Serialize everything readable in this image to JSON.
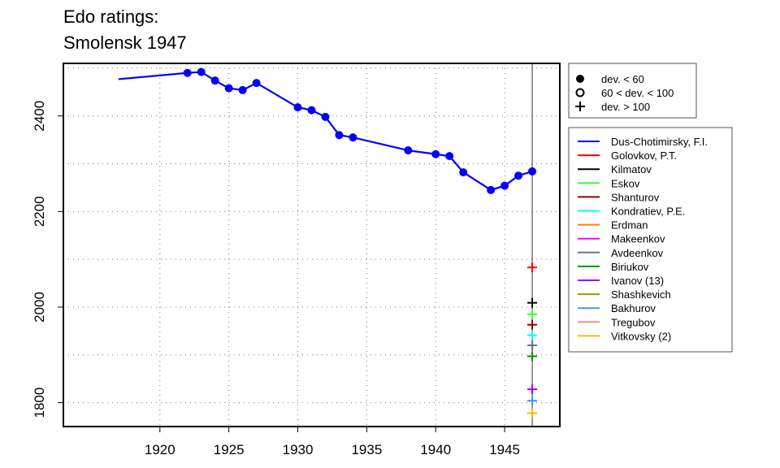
{
  "header": {
    "title_line1": "Edo ratings:",
    "title_line2": "Smolensk 1947"
  },
  "chart_data": {
    "type": "line",
    "title": "Edo ratings: Smolensk 1947",
    "xlabel": "",
    "ylabel": "",
    "xlim": [
      1913,
      1949
    ],
    "ylim": [
      1750,
      2510
    ],
    "x_ticks": [
      1920,
      1925,
      1930,
      1935,
      1940,
      1945
    ],
    "y_ticks": [
      1800,
      2000,
      2200,
      2400
    ],
    "grid": true,
    "vertical_marker_x": 1947,
    "main_series": {
      "name": "Dus-Chotimirsky, F.I.",
      "color": "#0000ff",
      "line_start": {
        "x": 1917,
        "y": 2477
      },
      "points": [
        {
          "x": 1922,
          "y": 2490
        },
        {
          "x": 1923,
          "y": 2492
        },
        {
          "x": 1924,
          "y": 2474
        },
        {
          "x": 1925,
          "y": 2458
        },
        {
          "x": 1926,
          "y": 2454
        },
        {
          "x": 1927,
          "y": 2469
        },
        {
          "x": 1930,
          "y": 2418
        },
        {
          "x": 1931,
          "y": 2412
        },
        {
          "x": 1932,
          "y": 2398
        },
        {
          "x": 1933,
          "y": 2360
        },
        {
          "x": 1934,
          "y": 2355
        },
        {
          "x": 1938,
          "y": 2328
        },
        {
          "x": 1940,
          "y": 2320
        },
        {
          "x": 1941,
          "y": 2316
        },
        {
          "x": 1942,
          "y": 2282
        },
        {
          "x": 1944,
          "y": 2245
        },
        {
          "x": 1945,
          "y": 2254
        },
        {
          "x": 1946,
          "y": 2275
        },
        {
          "x": 1947,
          "y": 2284
        }
      ]
    },
    "players_1947": [
      {
        "name": "Golovkov, P.T.",
        "color": "#ff0000",
        "y": 2083
      },
      {
        "name": "Kilmatov",
        "color": "#000000",
        "y": 2009
      },
      {
        "name": "Eskov",
        "color": "#33ff33",
        "y": 1985
      },
      {
        "name": "Shanturov",
        "color": "#990000",
        "y": 1963
      },
      {
        "name": "Kondratiev, P.E.",
        "color": "#00ffff",
        "y": 1941
      },
      {
        "name": "Erdman",
        "color": "#ff7f00",
        "y": 1920
      },
      {
        "name": "Makeenkov",
        "color": "#ff00ff",
        "y": 1920
      },
      {
        "name": "Avdeenkov",
        "color": "#667788",
        "y": 1920
      },
      {
        "name": "Biriukov",
        "color": "#009900",
        "y": 1897
      },
      {
        "name": "Ivanov (13)",
        "color": "#9900ff",
        "y": 1828
      },
      {
        "name": "Shashkevich",
        "color": "#999900",
        "y": 1804
      },
      {
        "name": "Bakhurov",
        "color": "#4499ff",
        "y": 1804
      },
      {
        "name": "Tregubov",
        "color": "#ff8888",
        "y": 1778
      },
      {
        "name": "Vitkovsky (2)",
        "color": "#ffbb00",
        "y": 1778
      }
    ],
    "symbol_legend": [
      {
        "symbol": "filled-circle",
        "label": "dev. < 60"
      },
      {
        "symbol": "open-circle",
        "label": "60 < dev. < 100"
      },
      {
        "symbol": "plus",
        "label": "dev. > 100"
      }
    ],
    "player_legend": [
      {
        "name": "Dus-Chotimirsky, F.I.",
        "color": "#0000ff"
      },
      {
        "name": "Golovkov, P.T.",
        "color": "#ff0000"
      },
      {
        "name": "Kilmatov",
        "color": "#000000"
      },
      {
        "name": "Eskov",
        "color": "#33ff33"
      },
      {
        "name": "Shanturov",
        "color": "#990000"
      },
      {
        "name": "Kondratiev, P.E.",
        "color": "#00ffff"
      },
      {
        "name": "Erdman",
        "color": "#ff7f00"
      },
      {
        "name": "Makeenkov",
        "color": "#ff00ff"
      },
      {
        "name": "Avdeenkov",
        "color": "#667788"
      },
      {
        "name": "Biriukov",
        "color": "#009900"
      },
      {
        "name": "Ivanov (13)",
        "color": "#9900ff"
      },
      {
        "name": "Shashkevich",
        "color": "#999900"
      },
      {
        "name": "Bakhurov",
        "color": "#4499ff"
      },
      {
        "name": "Tregubov",
        "color": "#ff8888"
      },
      {
        "name": "Vitkovsky (2)",
        "color": "#ffbb00"
      }
    ]
  }
}
